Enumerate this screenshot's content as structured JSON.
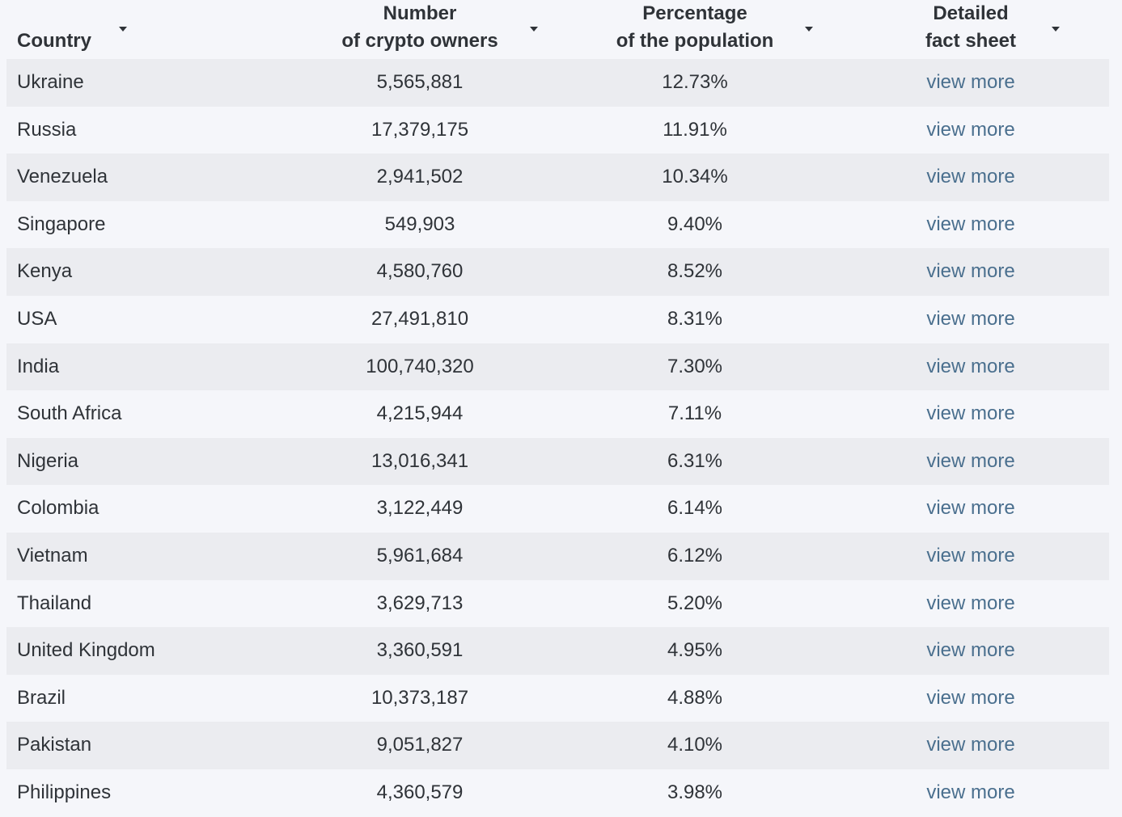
{
  "header": {
    "country": "Country",
    "owners_line1": "Number",
    "owners_line2": "of crypto owners",
    "pct_line1": "Percentage",
    "pct_line2": "of the population",
    "fact_line1": "Detailed",
    "fact_line2": "fact sheet"
  },
  "link_color": "#4a6f8e",
  "rows": [
    {
      "country": "Ukraine",
      "owners": "5,565,881",
      "pct": "12.73%",
      "link": "view more"
    },
    {
      "country": "Russia",
      "owners": "17,379,175",
      "pct": "11.91%",
      "link": "view more"
    },
    {
      "country": "Venezuela",
      "owners": "2,941,502",
      "pct": "10.34%",
      "link": "view more"
    },
    {
      "country": "Singapore",
      "owners": "549,903",
      "pct": "9.40%",
      "link": "view more"
    },
    {
      "country": "Kenya",
      "owners": "4,580,760",
      "pct": "8.52%",
      "link": "view more"
    },
    {
      "country": "USA",
      "owners": "27,491,810",
      "pct": "8.31%",
      "link": "view more"
    },
    {
      "country": "India",
      "owners": "100,740,320",
      "pct": "7.30%",
      "link": "view more"
    },
    {
      "country": "South Africa",
      "owners": "4,215,944",
      "pct": "7.11%",
      "link": "view more"
    },
    {
      "country": "Nigeria",
      "owners": "13,016,341",
      "pct": "6.31%",
      "link": "view more"
    },
    {
      "country": "Colombia",
      "owners": "3,122,449",
      "pct": "6.14%",
      "link": "view more"
    },
    {
      "country": "Vietnam",
      "owners": "5,961,684",
      "pct": "6.12%",
      "link": "view more"
    },
    {
      "country": "Thailand",
      "owners": "3,629,713",
      "pct": "5.20%",
      "link": "view more"
    },
    {
      "country": "United Kingdom",
      "owners": "3,360,591",
      "pct": "4.95%",
      "link": "view more"
    },
    {
      "country": "Brazil",
      "owners": "10,373,187",
      "pct": "4.88%",
      "link": "view more"
    },
    {
      "country": "Pakistan",
      "owners": "9,051,827",
      "pct": "4.10%",
      "link": "view more"
    },
    {
      "country": "Philippines",
      "owners": "4,360,579",
      "pct": "3.98%",
      "link": "view more"
    }
  ]
}
